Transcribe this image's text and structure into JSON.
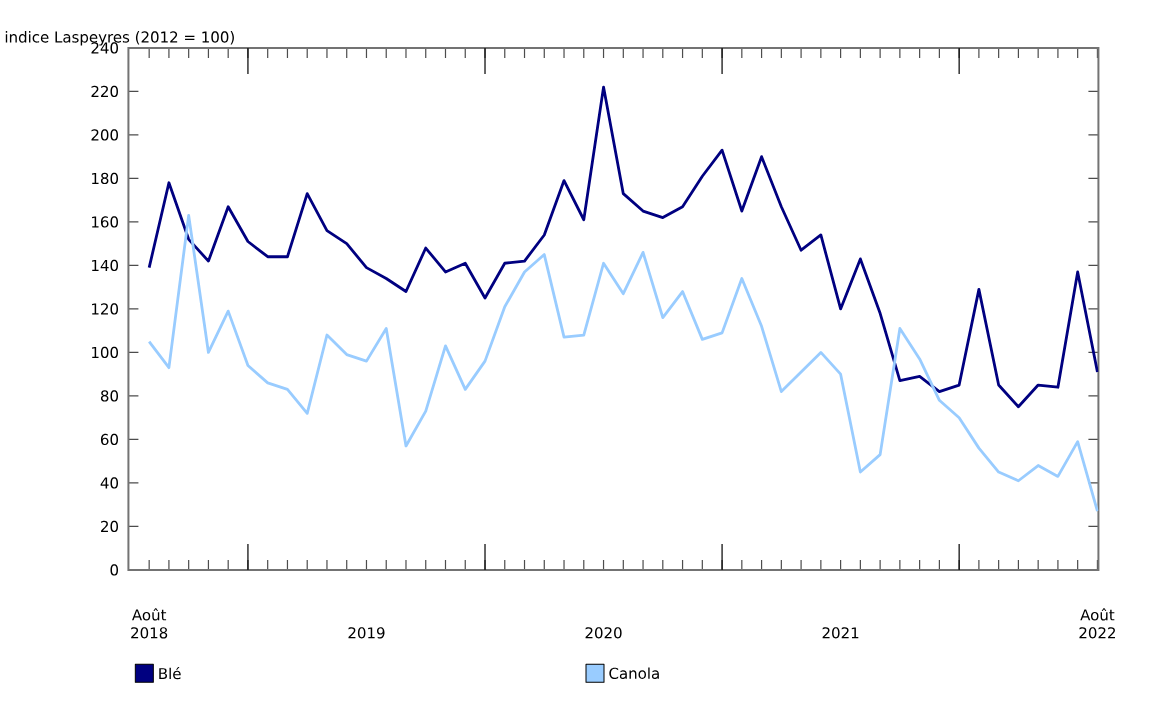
{
  "chart_data": {
    "type": "line",
    "ylabel": "indice Laspeyres (2012 = 100)",
    "categories": [
      "Août 2018",
      null,
      null,
      null,
      null,
      null,
      null,
      null,
      null,
      null,
      null,
      "2019",
      null,
      null,
      null,
      null,
      null,
      null,
      null,
      null,
      null,
      null,
      null,
      "2020",
      null,
      null,
      null,
      null,
      null,
      null,
      null,
      null,
      null,
      null,
      null,
      "2021",
      null,
      null,
      null,
      null,
      null,
      null,
      null,
      null,
      null,
      null,
      null,
      null,
      "Août 2022"
    ],
    "ylim": [
      0,
      240
    ],
    "yticks": [
      0,
      20,
      40,
      60,
      80,
      100,
      120,
      140,
      160,
      180,
      200,
      220,
      240
    ],
    "legend": "bottom",
    "grid": false,
    "series": [
      {
        "name": "Blé",
        "color": "#000080",
        "values": [
          139,
          178,
          152,
          142,
          167,
          151,
          144,
          144,
          173,
          156,
          150,
          139,
          134,
          128,
          148,
          137,
          141,
          125,
          141,
          142,
          154,
          179,
          161,
          222,
          173,
          165,
          162,
          167,
          181,
          193,
          165,
          190,
          167,
          147,
          154,
          120,
          143,
          118,
          87,
          89,
          82,
          85,
          129,
          85,
          75,
          85,
          84,
          137,
          91
        ]
      },
      {
        "name": "Canola",
        "color": "#99ccff",
        "values": [
          105,
          93,
          163,
          100,
          119,
          94,
          86,
          83,
          72,
          108,
          99,
          96,
          111,
          57,
          73,
          103,
          83,
          96,
          121,
          137,
          145,
          107,
          108,
          141,
          127,
          146,
          116,
          128,
          106,
          109,
          134,
          112,
          82,
          91,
          100,
          90,
          45,
          53,
          111,
          97,
          78,
          70,
          56,
          45,
          41,
          48,
          43,
          59,
          27
        ]
      }
    ]
  }
}
